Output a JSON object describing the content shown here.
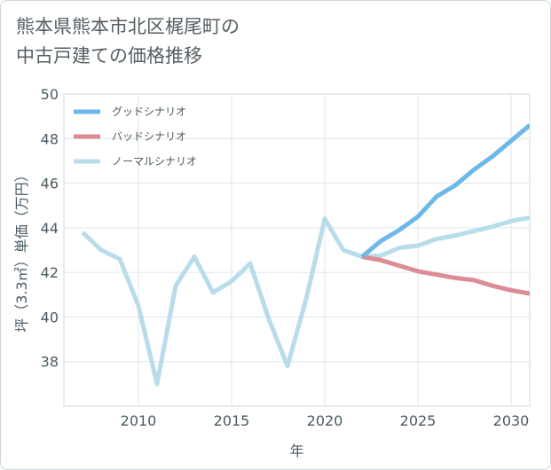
{
  "title_line1": "熊本県熊本市北区梶尾町の",
  "title_line2": "中古戸建ての価格推移",
  "chart_data": {
    "type": "line",
    "title": "熊本県熊本市北区梶尾町の中古戸建ての価格推移",
    "xlabel": "年",
    "ylabel": "坪（3.3㎡）単価（万円）",
    "xlim": [
      2006,
      2031
    ],
    "ylim": [
      36,
      50
    ],
    "xticks": [
      2010,
      2015,
      2020,
      2025,
      2030
    ],
    "yticks": [
      38,
      40,
      42,
      44,
      46,
      48,
      50
    ],
    "legend_position": "top-left",
    "series": [
      {
        "name": "グッドシナリオ",
        "color": "#6cb8ea",
        "x": [
          2022,
          2023,
          2024,
          2025,
          2026,
          2027,
          2028,
          2029,
          2030,
          2031
        ],
        "values": [
          42.7,
          43.4,
          43.9,
          44.5,
          45.4,
          45.9,
          46.6,
          47.2,
          47.9,
          48.6
        ]
      },
      {
        "name": "バッドシナリオ",
        "color": "#dc8c92",
        "x": [
          2022,
          2023,
          2024,
          2025,
          2026,
          2027,
          2028,
          2029,
          2030,
          2031
        ],
        "values": [
          42.7,
          42.55,
          42.3,
          42.05,
          41.9,
          41.75,
          41.65,
          41.4,
          41.2,
          41.05
        ]
      },
      {
        "name": "ノーマルシナリオ",
        "color": "#b8dcea",
        "x": [
          2007,
          2008,
          2009,
          2010,
          2011,
          2012,
          2013,
          2014,
          2015,
          2016,
          2017,
          2018,
          2019,
          2020,
          2021,
          2022,
          2023,
          2024,
          2025,
          2026,
          2027,
          2028,
          2029,
          2030,
          2031
        ],
        "values": [
          43.8,
          43.0,
          42.6,
          40.5,
          37.0,
          41.4,
          42.7,
          41.1,
          41.6,
          42.4,
          39.9,
          37.8,
          40.8,
          44.4,
          43.0,
          42.7,
          42.75,
          43.1,
          43.2,
          43.5,
          43.65,
          43.85,
          44.05,
          44.3,
          44.45
        ]
      }
    ]
  }
}
